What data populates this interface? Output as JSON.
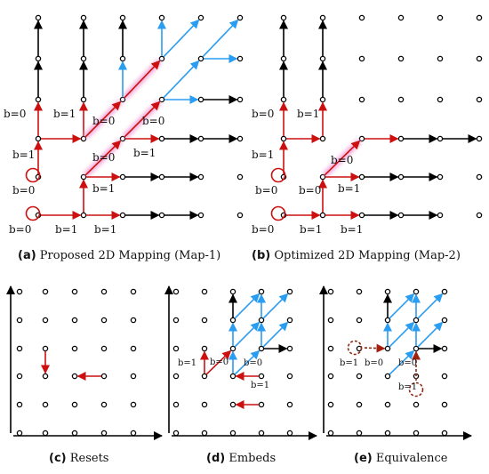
{
  "captions": {
    "a": {
      "letter": "(a)",
      "text": "Proposed 2D Mapping (Map-1)"
    },
    "b": {
      "letter": "(b)",
      "text": "Optimized 2D Mapping (Map-2)"
    },
    "c": {
      "letter": "(c)",
      "text": "Resets"
    },
    "d": {
      "letter": "(d)",
      "text": "Embeds"
    },
    "e": {
      "letter": "(e)",
      "text": "Equivalence"
    }
  },
  "edge_labels": {
    "b0": "b=0",
    "b1": "b=1"
  },
  "colors": {
    "red": "#cc1010",
    "blue": "#2a9df0",
    "black": "#000000",
    "glow": "#f2a0d6",
    "dashed_circle": "#8b2a10"
  }
}
